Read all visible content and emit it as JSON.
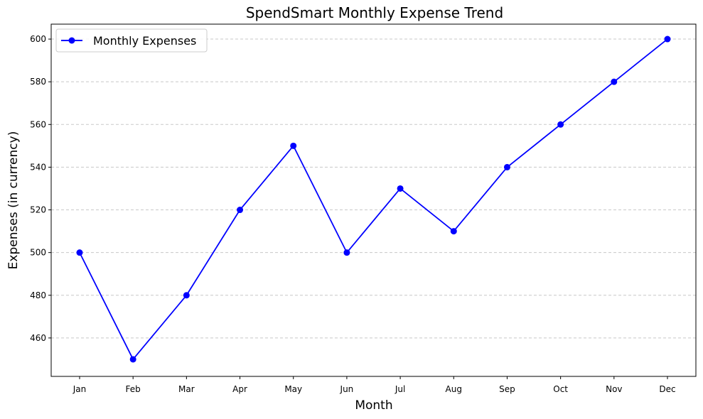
{
  "chart_data": {
    "type": "line",
    "title": "SpendSmart Monthly Expense Trend",
    "xlabel": "Month",
    "ylabel": "Expenses (in currency)",
    "categories": [
      "Jan",
      "Feb",
      "Mar",
      "Apr",
      "May",
      "Jun",
      "Jul",
      "Aug",
      "Sep",
      "Oct",
      "Nov",
      "Dec"
    ],
    "series": [
      {
        "name": "Monthly Expenses",
        "values": [
          500,
          450,
          480,
          520,
          550,
          500,
          530,
          510,
          540,
          560,
          580,
          600
        ],
        "color": "#0000ff",
        "marker": "circle"
      }
    ],
    "ylim": [
      442,
      607
    ],
    "yticks": [
      460,
      480,
      500,
      520,
      540,
      560,
      580,
      600
    ],
    "grid": "y-dashed",
    "legend_position": "top-left"
  }
}
